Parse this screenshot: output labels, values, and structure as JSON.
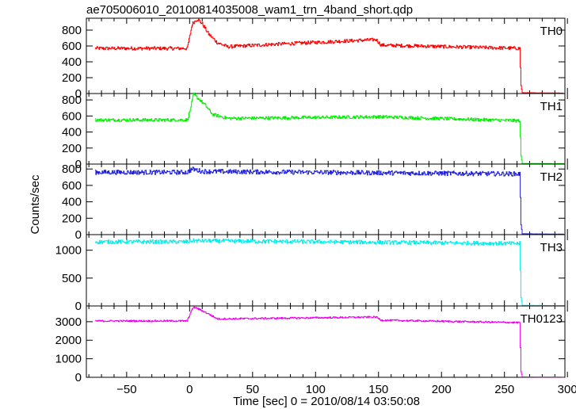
{
  "chart_data": {
    "type": "line",
    "title": "ae705006010_20100814035008_wam1_trn_4band_short.qdp",
    "xlabel": "Time [sec] 0 = 2010/08/14 03:50:08",
    "ylabel": "Counts/sec",
    "xlim": [
      -82,
      298
    ],
    "x_ticks": [
      -50,
      0,
      50,
      100,
      150,
      200,
      250,
      300
    ],
    "x_tick_labels": [
      "−50",
      "0",
      "50",
      "100",
      "150",
      "200",
      "250",
      "300"
    ],
    "x_range_data": [
      -75,
      297
    ],
    "grid": false,
    "legend": "none",
    "panels": [
      {
        "name": "TH0",
        "color": "#ff0000",
        "ylim": [
          0,
          950
        ],
        "y_ticks": [
          0,
          200,
          400,
          600,
          800
        ],
        "y_tick_labels": [
          "0",
          "200",
          "400",
          "600",
          "800"
        ],
        "baseline": 570,
        "noise": 22,
        "features": [
          {
            "t": -2,
            "v": 570
          },
          {
            "t": 0,
            "v": 720
          },
          {
            "t": 2,
            "v": 880
          },
          {
            "t": 6,
            "v": 940
          },
          {
            "t": 10,
            "v": 880
          },
          {
            "t": 15,
            "v": 750
          },
          {
            "t": 22,
            "v": 640
          },
          {
            "t": 30,
            "v": 590
          },
          {
            "t": 65,
            "v": 620
          },
          {
            "t": 148,
            "v": 680
          },
          {
            "t": 152,
            "v": 610
          },
          {
            "t": 262,
            "v": 570
          },
          {
            "t": 263,
            "v": 100
          },
          {
            "t": 264,
            "v": 10
          },
          {
            "t": 297,
            "v": 5
          }
        ]
      },
      {
        "name": "TH1",
        "color": "#00ee00",
        "ylim": [
          0,
          880
        ],
        "y_ticks": [
          0,
          200,
          400,
          600,
          800
        ],
        "y_tick_labels": [
          "0",
          "200",
          "400",
          "600",
          "800"
        ],
        "baseline": 550,
        "noise": 20,
        "features": [
          {
            "t": -2,
            "v": 550
          },
          {
            "t": 0,
            "v": 650
          },
          {
            "t": 3,
            "v": 870
          },
          {
            "t": 8,
            "v": 800
          },
          {
            "t": 12,
            "v": 740
          },
          {
            "t": 18,
            "v": 620
          },
          {
            "t": 30,
            "v": 570
          },
          {
            "t": 150,
            "v": 590
          },
          {
            "t": 262,
            "v": 540
          },
          {
            "t": 263,
            "v": 100
          },
          {
            "t": 264,
            "v": 8
          },
          {
            "t": 297,
            "v": 5
          }
        ]
      },
      {
        "name": "TH2",
        "color": "#2222dd",
        "ylim": [
          0,
          860
        ],
        "y_ticks": [
          0,
          200,
          400,
          600,
          800
        ],
        "y_tick_labels": [
          "0",
          "200",
          "400",
          "600",
          "800"
        ],
        "baseline": 760,
        "noise": 28,
        "features": [
          {
            "t": -2,
            "v": 760
          },
          {
            "t": 2,
            "v": 800
          },
          {
            "t": 10,
            "v": 770
          },
          {
            "t": 262,
            "v": 740
          },
          {
            "t": 263,
            "v": 120
          },
          {
            "t": 264,
            "v": 10
          },
          {
            "t": 297,
            "v": 5
          }
        ]
      },
      {
        "name": "TH3",
        "color": "#00eeee",
        "ylim": [
          0,
          1280
        ],
        "y_ticks": [
          0,
          500,
          1000
        ],
        "y_tick_labels": [
          "0",
          "500",
          "1000"
        ],
        "baseline": 1150,
        "noise": 35,
        "features": [
          {
            "t": -2,
            "v": 1150
          },
          {
            "t": 2,
            "v": 1170
          },
          {
            "t": 262,
            "v": 1120
          },
          {
            "t": 263,
            "v": 150
          },
          {
            "t": 264,
            "v": 10
          },
          {
            "t": 297,
            "v": 5
          }
        ]
      },
      {
        "name": "TH0123",
        "color": "#ee00ee",
        "ylim": [
          0,
          3850
        ],
        "y_ticks": [
          0,
          1000,
          2000,
          3000
        ],
        "y_tick_labels": [
          "0",
          "1000",
          "2000",
          "3000"
        ],
        "baseline": 3040,
        "noise": 45,
        "features": [
          {
            "t": -2,
            "v": 3040
          },
          {
            "t": 0,
            "v": 3400
          },
          {
            "t": 3,
            "v": 3800
          },
          {
            "t": 8,
            "v": 3650
          },
          {
            "t": 14,
            "v": 3450
          },
          {
            "t": 22,
            "v": 3150
          },
          {
            "t": 148,
            "v": 3250
          },
          {
            "t": 152,
            "v": 3080
          },
          {
            "t": 262,
            "v": 2950
          },
          {
            "t": 263,
            "v": 300
          },
          {
            "t": 264,
            "v": 20
          },
          {
            "t": 297,
            "v": 15
          }
        ]
      }
    ]
  }
}
